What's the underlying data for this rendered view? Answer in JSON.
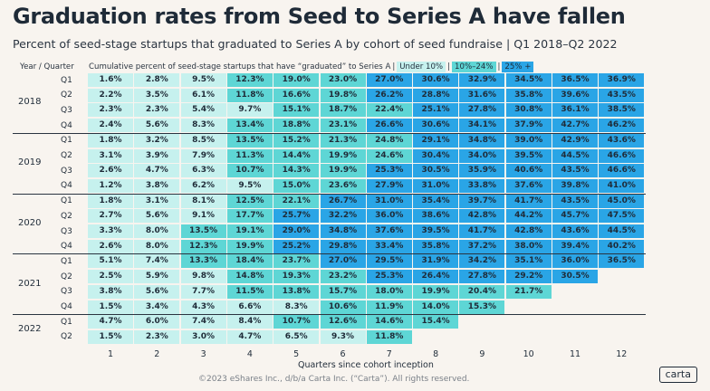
{
  "title": "Graduation rates from Seed to Series A have fallen",
  "subtitle": "Percent of seed-stage startups that graduated to Series A by cohort of seed fundraise | Q1 2018–Q2 2022",
  "header": {
    "year_quarter": "Year / Quarter",
    "description": "Cumulative percent of seed-stage startups that have “graduated” to Series A",
    "legend": [
      {
        "label": "Under 10%",
        "color": "#c6f1ee"
      },
      {
        "label": "10%–24%",
        "color": "#5ed6d5"
      },
      {
        "label": "25% +",
        "color": "#2aa5e6"
      }
    ]
  },
  "chart_data": {
    "type": "heatmap",
    "title": "Graduation rates from Seed to Series A have fallen",
    "xlabel": "Quarters since cohort inception",
    "ylabel": "Year / Quarter",
    "x": [
      "1",
      "2",
      "3",
      "4",
      "5",
      "6",
      "7",
      "8",
      "9",
      "10",
      "11",
      "12"
    ],
    "colors": {
      "under10": "#c6f1ee",
      "mid": "#5ed6d5",
      "high": "#2aa5e6"
    },
    "thresholds": [
      10,
      25
    ],
    "rows": [
      {
        "year": "2018",
        "quarter": "Q1",
        "values": [
          "1.6%",
          "2.8%",
          "9.5%",
          "12.3%",
          "19.0%",
          "23.0%",
          "27.0%",
          "30.6%",
          "32.9%",
          "34.5%",
          "36.5%",
          "36.9%"
        ]
      },
      {
        "year": "2018",
        "quarter": "Q2",
        "values": [
          "2.2%",
          "3.5%",
          "6.1%",
          "11.8%",
          "16.6%",
          "19.8%",
          "26.2%",
          "28.8%",
          "31.6%",
          "35.8%",
          "39.6%",
          "43.5%"
        ]
      },
      {
        "year": "2018",
        "quarter": "Q3",
        "values": [
          "2.3%",
          "2.3%",
          "5.4%",
          "9.7%",
          "15.1%",
          "18.7%",
          "22.4%",
          "25.1%",
          "27.8%",
          "30.8%",
          "36.1%",
          "38.5%"
        ]
      },
      {
        "year": "2018",
        "quarter": "Q4",
        "values": [
          "2.4%",
          "5.6%",
          "8.3%",
          "13.4%",
          "18.8%",
          "23.1%",
          "26.6%",
          "30.6%",
          "34.1%",
          "37.9%",
          "42.7%",
          "46.2%"
        ]
      },
      {
        "year": "2019",
        "quarter": "Q1",
        "values": [
          "1.8%",
          "3.2%",
          "8.5%",
          "13.5%",
          "15.2%",
          "21.3%",
          "24.8%",
          "29.1%",
          "34.8%",
          "39.0%",
          "42.9%",
          "43.6%"
        ]
      },
      {
        "year": "2019",
        "quarter": "Q2",
        "values": [
          "3.1%",
          "3.9%",
          "7.9%",
          "11.3%",
          "14.4%",
          "19.9%",
          "24.6%",
          "30.4%",
          "34.0%",
          "39.5%",
          "44.5%",
          "46.6%"
        ]
      },
      {
        "year": "2019",
        "quarter": "Q3",
        "values": [
          "2.6%",
          "4.7%",
          "6.3%",
          "10.7%",
          "14.3%",
          "19.9%",
          "25.3%",
          "30.5%",
          "35.9%",
          "40.6%",
          "43.5%",
          "46.6%"
        ]
      },
      {
        "year": "2019",
        "quarter": "Q4",
        "values": [
          "1.2%",
          "3.8%",
          "6.2%",
          "9.5%",
          "15.0%",
          "23.6%",
          "27.9%",
          "31.0%",
          "33.8%",
          "37.6%",
          "39.8%",
          "41.0%"
        ]
      },
      {
        "year": "2020",
        "quarter": "Q1",
        "values": [
          "1.8%",
          "3.1%",
          "8.1%",
          "12.5%",
          "22.1%",
          "26.7%",
          "31.0%",
          "35.4%",
          "39.7%",
          "41.7%",
          "43.5%",
          "45.0%"
        ]
      },
      {
        "year": "2020",
        "quarter": "Q2",
        "values": [
          "2.7%",
          "5.6%",
          "9.1%",
          "17.7%",
          "25.7%",
          "32.2%",
          "36.0%",
          "38.6%",
          "42.8%",
          "44.2%",
          "45.7%",
          "47.5%"
        ]
      },
      {
        "year": "2020",
        "quarter": "Q3",
        "values": [
          "3.3%",
          "8.0%",
          "13.5%",
          "19.1%",
          "29.0%",
          "34.8%",
          "37.6%",
          "39.5%",
          "41.7%",
          "42.8%",
          "43.6%",
          "44.5%"
        ]
      },
      {
        "year": "2020",
        "quarter": "Q4",
        "values": [
          "2.6%",
          "8.0%",
          "12.3%",
          "19.9%",
          "25.2%",
          "29.8%",
          "33.4%",
          "35.8%",
          "37.2%",
          "38.0%",
          "39.4%",
          "40.2%"
        ]
      },
      {
        "year": "2021",
        "quarter": "Q1",
        "values": [
          "5.1%",
          "7.4%",
          "13.3%",
          "18.4%",
          "23.7%",
          "27.0%",
          "29.5%",
          "31.9%",
          "34.2%",
          "35.1%",
          "36.0%",
          "36.5%"
        ]
      },
      {
        "year": "2021",
        "quarter": "Q2",
        "values": [
          "2.5%",
          "5.9%",
          "9.8%",
          "14.8%",
          "19.3%",
          "23.2%",
          "25.3%",
          "26.4%",
          "27.8%",
          "29.2%",
          "30.5%"
        ]
      },
      {
        "year": "2021",
        "quarter": "Q3",
        "values": [
          "3.8%",
          "5.6%",
          "7.7%",
          "11.5%",
          "13.8%",
          "15.7%",
          "18.0%",
          "19.9%",
          "20.4%",
          "21.7%"
        ]
      },
      {
        "year": "2021",
        "quarter": "Q4",
        "values": [
          "1.5%",
          "3.4%",
          "4.3%",
          "6.6%",
          "8.3%",
          "10.6%",
          "11.9%",
          "14.0%",
          "15.3%"
        ]
      },
      {
        "year": "2022",
        "quarter": "Q1",
        "values": [
          "4.7%",
          "6.0%",
          "7.4%",
          "8.4%",
          "10.7%",
          "12.6%",
          "14.6%",
          "15.4%"
        ]
      },
      {
        "year": "2022",
        "quarter": "Q2",
        "values": [
          "1.5%",
          "2.3%",
          "3.0%",
          "4.7%",
          "6.5%",
          "9.3%",
          "11.8%"
        ]
      }
    ]
  },
  "footer": "©2023 eShares Inc., d/b/a Carta Inc. (“Carta”). All rights reserved.",
  "logo": "carta"
}
